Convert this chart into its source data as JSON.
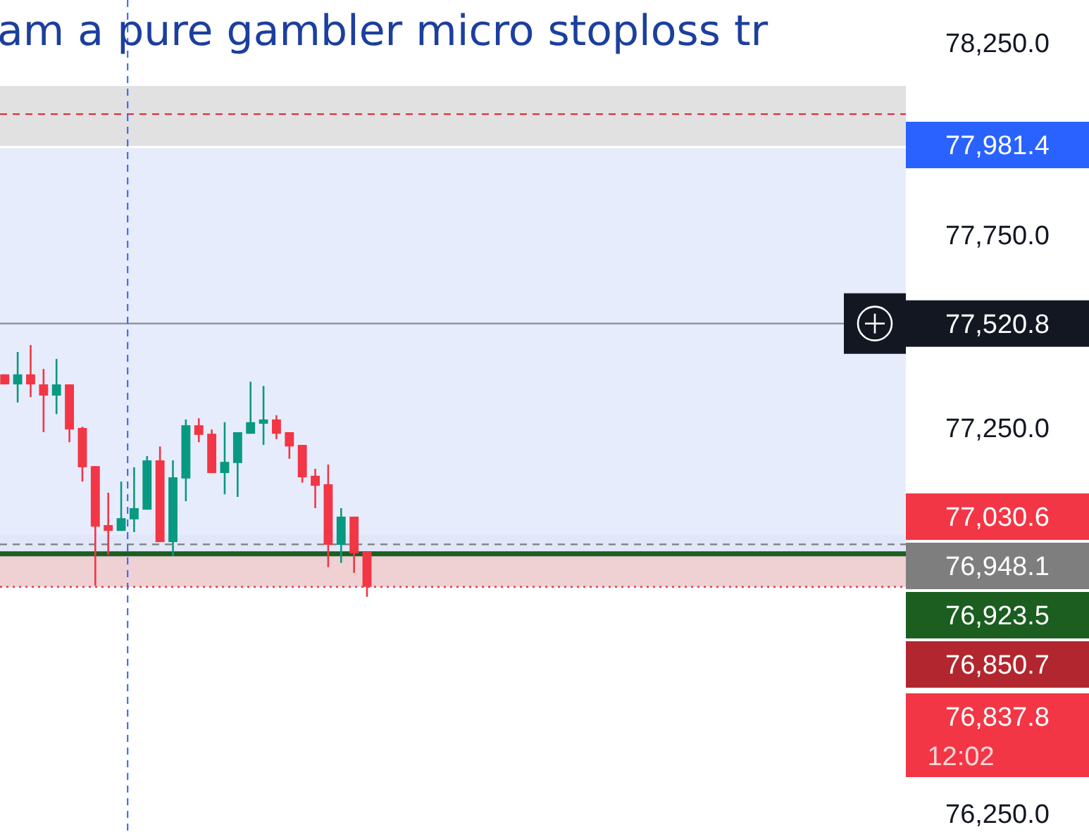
{
  "chart_data": {
    "type": "candlestick",
    "title": "am a pure gambler micro stoploss tr",
    "categories": [
      null,
      null,
      null,
      null,
      null,
      null,
      null,
      null,
      null,
      null,
      null,
      null,
      null,
      null,
      null,
      null,
      null,
      null,
      null,
      null,
      null,
      null,
      null,
      null,
      null,
      null,
      null,
      null,
      null,
      null,
      null,
      null,
      null,
      null,
      null,
      null,
      null,
      null,
      null,
      null,
      null,
      null,
      null,
      null,
      null,
      null,
      null,
      null,
      null,
      null,
      null,
      null,
      null,
      null,
      null,
      null,
      null,
      null,
      null,
      null,
      null,
      null,
      null,
      null,
      null,
      null,
      null,
      null,
      null,
      null
    ],
    "ohlc": [
      [
        77389,
        77389,
        77363,
        77363
      ],
      [
        77363,
        77447,
        77316,
        77389
      ],
      [
        77389,
        77465,
        77330,
        77363
      ],
      [
        77363,
        77403,
        77239,
        77334
      ],
      [
        77334,
        77429,
        77286,
        77363
      ],
      [
        77363,
        77363,
        77213,
        77246
      ],
      [
        77250,
        77253,
        77111,
        77148
      ],
      [
        77151,
        77151,
        76841,
        76994
      ],
      [
        76998,
        77082,
        76921,
        76983
      ],
      [
        76983,
        77111,
        76983,
        77016
      ],
      [
        77013,
        77148,
        76980,
        77042
      ],
      [
        77038,
        77177,
        77038,
        77166
      ],
      [
        77166,
        77202,
        76954,
        76954
      ],
      [
        76954,
        77166,
        76918,
        77122
      ],
      [
        77119,
        77272,
        77060,
        77257
      ],
      [
        77257,
        77275,
        77213,
        77232
      ],
      [
        77235,
        77246,
        77133,
        77133
      ],
      [
        77133,
        77265,
        77078,
        77162
      ],
      [
        77159,
        77239,
        77071,
        77239
      ],
      [
        77235,
        77370,
        77235,
        77265
      ],
      [
        77261,
        77359,
        77206,
        77272
      ],
      [
        77272,
        77283,
        77221,
        77235
      ],
      [
        77239,
        77239,
        77170,
        77202
      ],
      [
        77206,
        77206,
        77108,
        77122
      ],
      [
        77126,
        77144,
        77042,
        77100
      ],
      [
        77104,
        77155,
        76889,
        76947
      ],
      [
        76947,
        77042,
        76900,
        77020
      ],
      [
        77020,
        77020,
        76874,
        76925
      ],
      [
        76929,
        76929,
        76812,
        76838
      ],
      null,
      null,
      null,
      null,
      null,
      null,
      null,
      null,
      null,
      null,
      null,
      null,
      null,
      null,
      null,
      null,
      null,
      null,
      null,
      null,
      null,
      null,
      null,
      null,
      null,
      null,
      null,
      null,
      null,
      null,
      null,
      null,
      null,
      null,
      null,
      null,
      null,
      null,
      null,
      null,
      null
    ],
    "ylim": [
      76202,
      78360
    ],
    "yticks": [
      {
        "value": 78250,
        "label": "78,250.0"
      },
      {
        "value": 77750,
        "label": "77,750.0"
      },
      {
        "value": 77250,
        "label": "77,250.0"
      },
      {
        "value": 76250,
        "label": "76,250.0"
      }
    ],
    "bands": [
      {
        "axis": "y",
        "from": 77981.4,
        "to": 78137,
        "color": "#dcdcdc"
      },
      {
        "axis": "y",
        "from": 76914,
        "to": 76973,
        "color": "#d1d4dc"
      },
      {
        "axis": "y",
        "from": 76923.5,
        "to": 77976,
        "color": "#e3e9fb"
      },
      {
        "axis": "y",
        "from": 76837.8,
        "to": 76923.5,
        "color": "#ecc9cc"
      }
    ],
    "ref_lines": [
      {
        "axis": "y",
        "value": 78064,
        "color": "#e0303c",
        "line_style": "dashed"
      },
      {
        "axis": "y",
        "value": 77520.8,
        "label": "77,520.8",
        "color": "#131722",
        "line_style": "solid"
      },
      {
        "axis": "y",
        "value": 76948.1,
        "label": "76,948.1",
        "color": "#7e7e7e",
        "line_style": "dashed"
      },
      {
        "axis": "y",
        "value": 76923.5,
        "label": "76,923.5",
        "color": "#1b5e20",
        "line_style": "solid"
      },
      {
        "axis": "y",
        "value": 76837.8,
        "color": "#f23645",
        "line_style": "dotted"
      }
    ],
    "annotations": [
      "77,981.4",
      "77,030.6",
      "76,850.7",
      "76,837.8",
      "12:02"
    ],
    "grid": false
  }
}
